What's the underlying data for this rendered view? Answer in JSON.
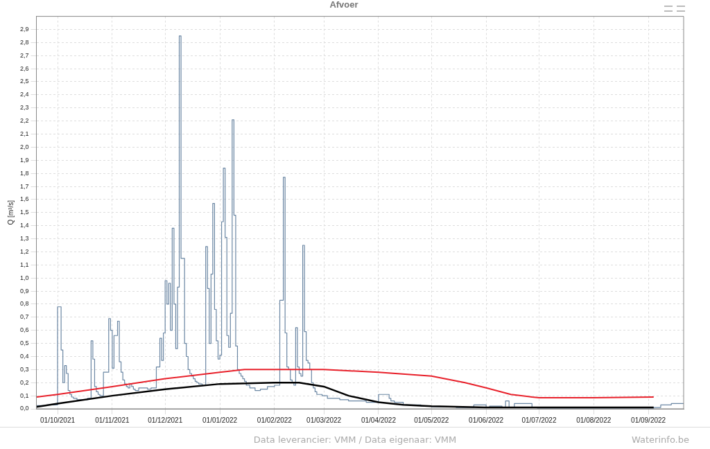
{
  "chart_data": {
    "type": "line",
    "title": "Afvoer",
    "ylabel": "Q [m³/s]",
    "xlim": [
      "2021-09-19",
      "2022-09-21"
    ],
    "xticks": [
      {
        "value": "2021-10-01",
        "label": "01/10/2021"
      },
      {
        "value": "2021-11-01",
        "label": "01/11/2021"
      },
      {
        "value": "2021-12-01",
        "label": "01/12/2021"
      },
      {
        "value": "2022-01-01",
        "label": "01/01/2022"
      },
      {
        "value": "2022-02-01",
        "label": "01/02/2022"
      },
      {
        "value": "2022-03-01",
        "label": "01/03/2022"
      },
      {
        "value": "2022-04-01",
        "label": "01/04/2022"
      },
      {
        "value": "2022-05-01",
        "label": "01/05/2022"
      },
      {
        "value": "2022-06-01",
        "label": "01/06/2022"
      },
      {
        "value": "2022-07-01",
        "label": "01/07/2022"
      },
      {
        "value": "2022-08-01",
        "label": "01/08/2022"
      },
      {
        "value": "2022-09-01",
        "label": "01/09/2022"
      }
    ],
    "ylim": [
      0,
      3.0
    ],
    "yticks": [
      {
        "value": 0,
        "label": "0,0"
      },
      {
        "value": 0.1,
        "label": "0,1"
      },
      {
        "value": 0.2,
        "label": "0,2"
      },
      {
        "value": 0.3,
        "label": "0,3"
      },
      {
        "value": 0.4,
        "label": "0,4"
      },
      {
        "value": 0.5,
        "label": "0,5"
      },
      {
        "value": 0.6,
        "label": "0,6"
      },
      {
        "value": 0.7,
        "label": "0,7"
      },
      {
        "value": 0.8,
        "label": "0,8"
      },
      {
        "value": 0.9,
        "label": "0,9"
      },
      {
        "value": 1.0,
        "label": "1,0"
      },
      {
        "value": 1.1,
        "label": "1,1"
      },
      {
        "value": 1.2,
        "label": "1,2"
      },
      {
        "value": 1.3,
        "label": "1,3"
      },
      {
        "value": 1.4,
        "label": "1,4"
      },
      {
        "value": 1.5,
        "label": "1,5"
      },
      {
        "value": 1.6,
        "label": "1,6"
      },
      {
        "value": 1.7,
        "label": "1,7"
      },
      {
        "value": 1.8,
        "label": "1,8"
      },
      {
        "value": 1.9,
        "label": "1,9"
      },
      {
        "value": 2.0,
        "label": "2,0"
      },
      {
        "value": 2.1,
        "label": "2,1"
      },
      {
        "value": 2.2,
        "label": "2,2"
      },
      {
        "value": 2.3,
        "label": "2,3"
      },
      {
        "value": 2.4,
        "label": "2,4"
      },
      {
        "value": 2.5,
        "label": "2,5"
      },
      {
        "value": 2.6,
        "label": "2,6"
      },
      {
        "value": 2.7,
        "label": "2,7"
      },
      {
        "value": 2.8,
        "label": "2,8"
      },
      {
        "value": 2.9,
        "label": "2,9"
      }
    ],
    "grid": true,
    "legend": false,
    "marker": "none",
    "series": [
      {
        "type": "step",
        "color": "#6a86a3",
        "x": [
          "2021-09-19",
          "2021-09-25",
          "2021-10-01",
          "2021-10-03",
          "2021-10-04",
          "2021-10-05",
          "2021-10-06",
          "2021-10-07",
          "2021-10-08",
          "2021-10-09",
          "2021-10-10",
          "2021-10-12",
          "2021-10-15",
          "2021-10-18",
          "2021-10-20",
          "2021-10-21",
          "2021-10-22",
          "2021-10-23",
          "2021-10-24",
          "2021-10-25",
          "2021-10-27",
          "2021-10-30",
          "2021-10-31",
          "2021-11-01",
          "2021-11-02",
          "2021-11-04",
          "2021-11-05",
          "2021-11-06",
          "2021-11-07",
          "2021-11-08",
          "2021-11-09",
          "2021-11-10",
          "2021-11-11",
          "2021-11-12",
          "2021-11-13",
          "2021-11-14",
          "2021-11-16",
          "2021-11-21",
          "2021-11-23",
          "2021-11-26",
          "2021-11-28",
          "2021-11-29",
          "2021-11-30",
          "2021-12-01",
          "2021-12-02",
          "2021-12-03",
          "2021-12-04",
          "2021-12-05",
          "2021-12-06",
          "2021-12-07",
          "2021-12-08",
          "2021-12-09",
          "2021-12-10",
          "2021-12-12",
          "2021-12-13",
          "2021-12-14",
          "2021-12-15",
          "2021-12-16",
          "2021-12-17",
          "2021-12-18",
          "2021-12-19",
          "2021-12-20",
          "2021-12-22",
          "2021-12-24",
          "2021-12-25",
          "2021-12-26",
          "2021-12-27",
          "2021-12-28",
          "2021-12-29",
          "2021-12-30",
          "2021-12-31",
          "2022-01-01",
          "2022-01-02",
          "2022-01-03",
          "2022-01-04",
          "2022-01-05",
          "2022-01-06",
          "2022-01-07",
          "2022-01-08",
          "2022-01-09",
          "2022-01-10",
          "2022-01-11",
          "2022-01-12",
          "2022-01-13",
          "2022-01-14",
          "2022-01-15",
          "2022-01-16",
          "2022-01-18",
          "2022-01-21",
          "2022-01-24",
          "2022-01-28",
          "2022-02-01",
          "2022-02-04",
          "2022-02-06",
          "2022-02-07",
          "2022-02-08",
          "2022-02-09",
          "2022-02-10",
          "2022-02-11",
          "2022-02-12",
          "2022-02-13",
          "2022-02-14",
          "2022-02-15",
          "2022-02-16",
          "2022-02-17",
          "2022-02-18",
          "2022-02-19",
          "2022-02-20",
          "2022-02-21",
          "2022-02-22",
          "2022-02-23",
          "2022-02-24",
          "2022-02-25",
          "2022-02-28",
          "2022-03-03",
          "2022-03-10",
          "2022-03-15",
          "2022-03-25",
          "2022-04-01",
          "2022-04-07",
          "2022-04-08",
          "2022-04-10",
          "2022-04-15",
          "2022-04-25",
          "2022-05-01",
          "2022-05-15",
          "2022-05-25",
          "2022-06-01",
          "2022-06-03",
          "2022-06-10",
          "2022-06-12",
          "2022-06-14",
          "2022-06-17",
          "2022-06-27",
          "2022-06-30",
          "2022-07-01",
          "2022-09-04",
          "2022-09-08",
          "2022-09-14",
          "2022-09-18",
          "2022-09-21"
        ],
        "values": [
          0.02,
          0.025,
          0.03,
          0.78,
          0.45,
          0.2,
          0.33,
          0.27,
          0.14,
          0.11,
          0.09,
          0.08,
          0.07,
          0.07,
          0.08,
          0.52,
          0.38,
          0.17,
          0.13,
          0.11,
          0.1,
          0.28,
          0.69,
          0.6,
          0.31,
          0.56,
          0.67,
          0.36,
          0.28,
          0.22,
          0.19,
          0.17,
          0.16,
          0.19,
          0.17,
          0.15,
          0.14,
          0.16,
          0.15,
          0.16,
          0.32,
          0.54,
          0.37,
          0.58,
          0.98,
          0.8,
          0.96,
          0.6,
          1.38,
          0.8,
          0.46,
          0.93,
          2.85,
          1.15,
          0.5,
          0.4,
          0.3,
          0.27,
          0.25,
          0.23,
          0.21,
          0.2,
          0.19,
          0.18,
          1.24,
          0.92,
          0.5,
          1.03,
          1.57,
          0.76,
          0.52,
          0.38,
          0.41,
          1.43,
          1.84,
          1.31,
          0.56,
          0.47,
          0.73,
          2.21,
          1.48,
          0.48,
          0.3,
          0.27,
          0.25,
          0.23,
          0.21,
          0.18,
          0.16,
          0.14,
          0.15,
          0.17,
          0.18,
          0.83,
          1.77,
          0.58,
          0.32,
          0.3,
          0.22,
          0.2,
          0.18,
          0.62,
          0.32,
          0.27,
          0.25,
          1.25,
          0.59,
          0.37,
          0.35,
          0.3,
          0.2,
          0.16,
          0.13,
          0.11,
          0.1,
          0.08,
          0.07,
          0.06,
          0.05,
          0.11,
          0.08,
          0.06,
          0.05,
          0.03,
          0.02,
          0.015,
          0.01,
          0.03,
          0.01,
          0.02,
          0.01,
          0.06,
          0.01,
          0.04,
          0.01,
          0.005,
          0.005,
          0.01,
          0.03,
          0.04,
          0.04
        ]
      },
      {
        "type": "line",
        "color": "#e8202a",
        "x": [
          "2021-09-19",
          "2021-10-01",
          "2021-11-01",
          "2021-12-01",
          "2022-01-01",
          "2022-01-15",
          "2022-02-01",
          "2022-03-01",
          "2022-04-01",
          "2022-05-01",
          "2022-05-20",
          "2022-06-01",
          "2022-06-15",
          "2022-06-27",
          "2022-07-01",
          "2022-08-01",
          "2022-09-04"
        ],
        "values": [
          0.09,
          0.11,
          0.17,
          0.23,
          0.28,
          0.3,
          0.3,
          0.3,
          0.28,
          0.25,
          0.2,
          0.16,
          0.11,
          0.09,
          0.085,
          0.085,
          0.09
        ]
      },
      {
        "type": "line",
        "color": "#000000",
        "x": [
          "2021-09-19",
          "2021-10-01",
          "2021-11-01",
          "2021-12-01",
          "2022-01-01",
          "2022-02-01",
          "2022-02-15",
          "2022-03-01",
          "2022-03-15",
          "2022-04-01",
          "2022-04-15",
          "2022-05-01",
          "2022-06-01",
          "2022-09-04"
        ],
        "values": [
          0.015,
          0.04,
          0.1,
          0.15,
          0.19,
          0.2,
          0.2,
          0.17,
          0.1,
          0.05,
          0.03,
          0.02,
          0.01,
          0.01
        ]
      }
    ],
    "annotations": [
      "Data leverancier: VMM / Data eigenaar: VMM",
      "Waterinfo.be"
    ]
  }
}
